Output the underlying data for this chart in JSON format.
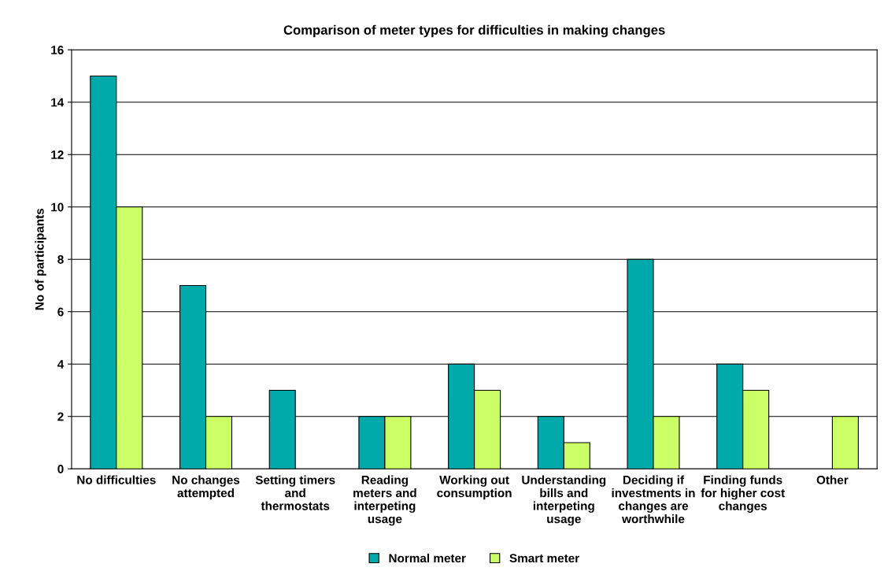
{
  "chart_data": {
    "type": "bar",
    "title": "Comparison of meter types for difficulties in making changes",
    "ylabel": "No of participants",
    "categories": [
      "No difficulties",
      "No changes\nattempted",
      "Setting timers\nand\nthermostats",
      "Reading\nmeters and\ninterpeting\nusage",
      "Working out\nconsumption",
      "Understanding\nbills and\ninterpeting\nusage",
      "Deciding if\ninvestments in\nchanges are\nworthwhile",
      "Finding funds\nfor higher cost\nchanges",
      "Other"
    ],
    "series": [
      {
        "name": "Normal meter",
        "color": "#00aaaa",
        "values": [
          15,
          7,
          3,
          2,
          4,
          2,
          8,
          4,
          null
        ]
      },
      {
        "name": "Smart meter",
        "color": "#ccff66",
        "values": [
          10,
          2,
          null,
          2,
          3,
          1,
          2,
          3,
          2
        ]
      }
    ],
    "ylim": [
      0,
      16
    ],
    "yticks": [
      0,
      2,
      4,
      6,
      8,
      10,
      12,
      14,
      16
    ],
    "grid": "y",
    "legend": "bottom"
  }
}
